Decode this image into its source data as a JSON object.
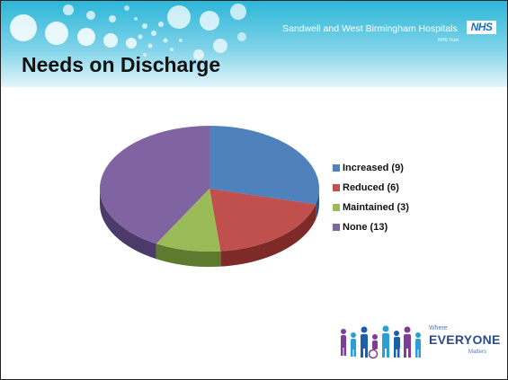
{
  "header": {
    "trust_name": "Sandwell and West Birmingham Hospitals",
    "nhs_logo": "NHS",
    "trust_subtitle": "NHS Trust"
  },
  "slide": {
    "title": "Needs on Discharge"
  },
  "chart_data": {
    "type": "pie",
    "title": "",
    "style": "3d",
    "legend_position": "right",
    "categories": [
      "Increased (9)",
      "Reduced (6)",
      "Maintained (3)",
      "None (13)"
    ],
    "values": [
      9,
      6,
      3,
      13
    ],
    "colors": [
      "#4f81bd",
      "#c0504d",
      "#9bbb59",
      "#8064a2"
    ],
    "dark_colors": [
      "#2f5180",
      "#7d2a28",
      "#5e7a2e",
      "#4c3a6b"
    ]
  },
  "branding": {
    "where": "Where",
    "everyone": "EVERYONE",
    "matters": "Matters"
  },
  "colors": {
    "header_teal": "#2bb5d6",
    "header_light": "#d7f2f9"
  }
}
